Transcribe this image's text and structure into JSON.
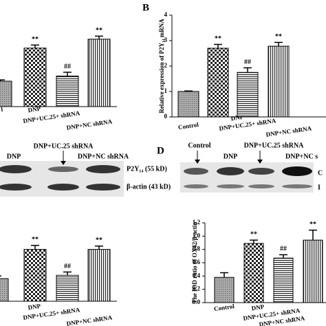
{
  "chart_data": [
    {
      "type": "bar",
      "categories": [
        "l",
        "DNP",
        "DNP+UC.25+ shRNA",
        "DNP+NC shRNA"
      ],
      "values": [
        1,
        2.3,
        1.2,
        2.65
      ],
      "errors": [
        0.05,
        0.12,
        0.15,
        0.12
      ],
      "annotations": [
        null,
        "**",
        "##",
        "**"
      ],
      "ylim": [
        0,
        4
      ]
    },
    {
      "type": "bar",
      "title": "B",
      "ylabel": "Relative expression of P2Y₁₄ mRNA",
      "categories": [
        "Control",
        "DNP",
        "DNP+UC.25+ shRNA",
        "DNP+NC shRNA"
      ],
      "values": [
        1,
        2.7,
        1.75,
        2.78
      ],
      "errors": [
        0.02,
        0.15,
        0.18,
        0.15
      ],
      "annotations": [
        null,
        "**",
        "##",
        "**"
      ],
      "ylim": [
        0,
        4
      ],
      "yticks": [
        0,
        1,
        2,
        3,
        4
      ]
    },
    {
      "type": "bar",
      "categories": [
        null,
        "DNP",
        "DNP+UC.25+ shRNA",
        "DNP+NC shRNA"
      ],
      "values": [
        0.34,
        0.78,
        0.39,
        0.78
      ],
      "errors": [
        0.04,
        0.06,
        0.05,
        0.05
      ],
      "annotations": [
        null,
        "**",
        "##",
        "**"
      ],
      "ylim": [
        0,
        1.2
      ]
    },
    {
      "type": "bar",
      "ylabel": "The IOD ratio of OX42/β-actin",
      "categories": [
        "Control",
        "DNP",
        "DNP+UC.25+ shRNA",
        "DNP+NC shRNA"
      ],
      "values": [
        0.38,
        0.89,
        0.67,
        0.94
      ],
      "errors": [
        0.07,
        0.05,
        0.05,
        0.15
      ],
      "annotations": [
        null,
        "**",
        "##",
        "**"
      ],
      "ylim": [
        0,
        1.2
      ],
      "yticks": [
        {
          "value": 0,
          "label": "0.0"
        },
        {
          "value": 0.2,
          "label": "0.2"
        },
        {
          "value": 0.4,
          "label": "0.4"
        },
        {
          "value": 0.6,
          "label": "0.6"
        },
        {
          "value": 0.8,
          "label": "0.8"
        },
        {
          "value": 1.0,
          "label": "1.0"
        },
        {
          "value": 1.2,
          "label": "1.2"
        }
      ]
    }
  ],
  "blots": {
    "left": {
      "lanes": [
        "DNP",
        "DNP+UC.25 shRNA",
        "DNP+NC shRNA"
      ],
      "rows": [
        "P2Y₁₄ (55 kD)",
        "β-actin (43 kD)"
      ]
    },
    "right": {
      "label": "D",
      "lanes": [
        "Control",
        "DNP+UC.25 shRNA",
        "DNP",
        "DNP+NC s"
      ],
      "rows": [
        "C",
        "I"
      ]
    }
  }
}
